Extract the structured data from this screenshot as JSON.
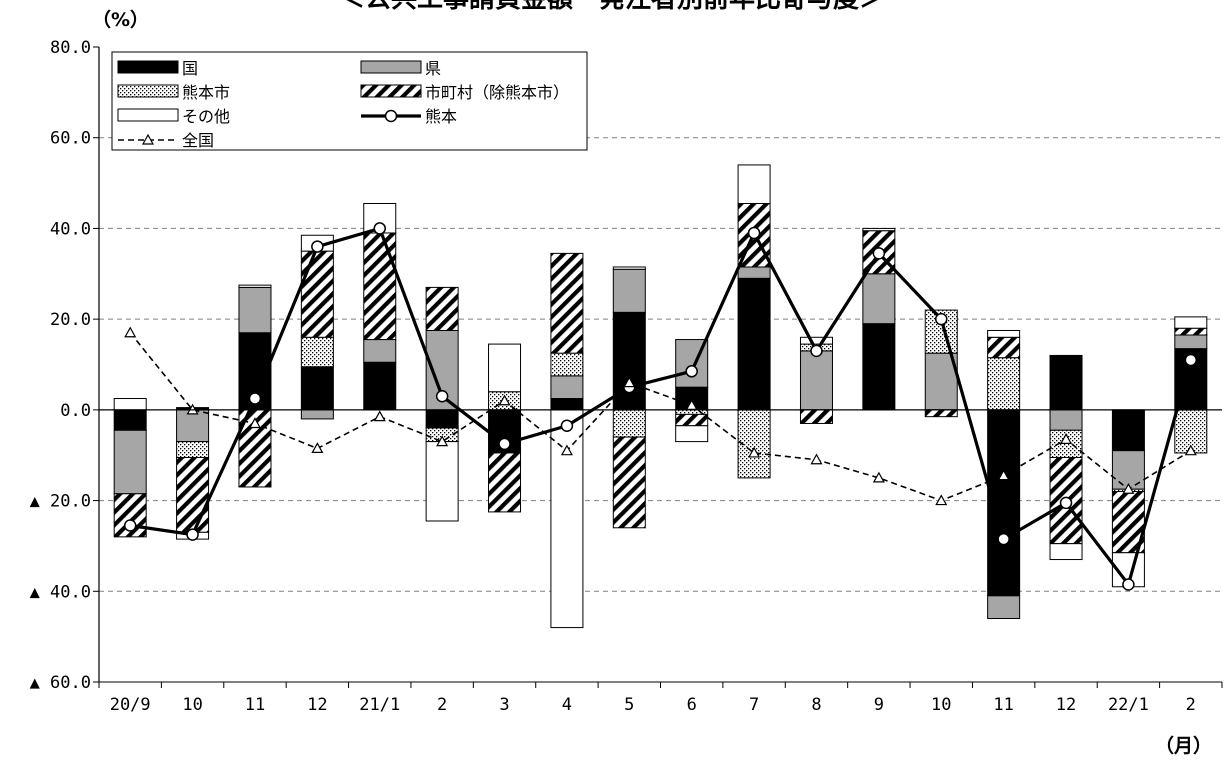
{
  "chart_data": {
    "type": "bar",
    "title": "＜公共工事請負金額　発注者別前年比寄与度＞",
    "ylabel": "（%）",
    "xlabel": "（月）",
    "ylim": [
      -60,
      80
    ],
    "yticks": [
      {
        "value": 80,
        "label": "80.0"
      },
      {
        "value": 60,
        "label": "60.0"
      },
      {
        "value": 40,
        "label": "40.0"
      },
      {
        "value": 20,
        "label": "20.0"
      },
      {
        "value": 0,
        "label": "0.0"
      },
      {
        "value": -20,
        "label": "▲ 20.0"
      },
      {
        "value": -40,
        "label": "▲ 40.0"
      },
      {
        "value": -60,
        "label": "▲ 60.0"
      }
    ],
    "categories": [
      "20/9",
      "10",
      "11",
      "12",
      "21/1",
      "2",
      "3",
      "4",
      "5",
      "6",
      "7",
      "8",
      "9",
      "10",
      "11",
      "12",
      "22/1",
      "2"
    ],
    "grid": true,
    "legend_position": "top-left",
    "series": [
      {
        "name": "国",
        "kind": "bar",
        "pattern": "solid-black",
        "values": [
          -4.5,
          0.5,
          17,
          9.5,
          10.5,
          -4,
          -9.5,
          2.5,
          21.5,
          5,
          29,
          0,
          19,
          0,
          -41,
          12,
          -9,
          13.5
        ]
      },
      {
        "name": "県",
        "kind": "bar",
        "pattern": "gray",
        "values": [
          -14,
          -7,
          10,
          -2,
          5,
          17.5,
          0,
          5,
          9.5,
          10.5,
          2.5,
          13,
          11,
          12.5,
          -5,
          -4.5,
          -8.5,
          3
        ]
      },
      {
        "name": "熊本市",
        "kind": "bar",
        "pattern": "dots",
        "values": [
          0,
          -3.5,
          0,
          6.5,
          0,
          -3,
          4,
          5,
          -6,
          -1,
          -15,
          1.5,
          0,
          9.5,
          11.5,
          -6,
          -0.5,
          -9.5
        ]
      },
      {
        "name": "市町村（除熊本市）",
        "kind": "bar",
        "pattern": "hatch",
        "values": [
          -9.5,
          -16.5,
          -17,
          19,
          23.5,
          9.5,
          -13,
          22,
          -20,
          -2.5,
          14,
          -3,
          9.5,
          -1.5,
          4.5,
          -19,
          -13.5,
          1.5
        ]
      },
      {
        "name": "その他",
        "kind": "bar",
        "pattern": "white",
        "values": [
          2.5,
          -1.5,
          0.5,
          3.5,
          6.5,
          -17.5,
          10.5,
          -48,
          0.5,
          -3.5,
          8.5,
          1.5,
          0.5,
          0,
          1.5,
          -3.5,
          -7.5,
          2.5
        ]
      },
      {
        "name": "熊本",
        "kind": "line",
        "style": "solid-circle",
        "values": [
          -25.5,
          -27.5,
          2.5,
          36,
          40,
          3,
          -7.5,
          -3.5,
          5,
          8.5,
          39,
          13,
          34.5,
          20,
          -28.5,
          -20.5,
          -38.5,
          11
        ]
      },
      {
        "name": "全国",
        "kind": "line",
        "style": "dashed-triangle",
        "values": [
          17,
          0,
          -3,
          -8.5,
          -1.5,
          -7,
          2,
          -9,
          6,
          1,
          -9.5,
          -11,
          -15,
          -20,
          -14.5,
          -6.5,
          -17.5,
          -9
        ]
      }
    ]
  }
}
